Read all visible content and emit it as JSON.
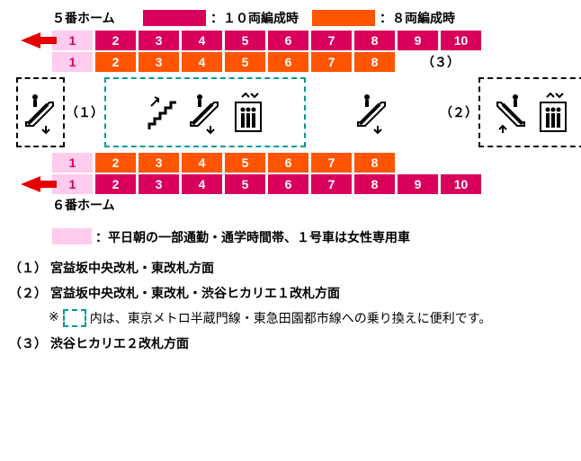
{
  "colors": {
    "magenta": "#d9005b",
    "orange": "#ff5500",
    "pink": "#ffccee",
    "arrow": "#e60000",
    "teal": "#009999"
  },
  "legend_top": {
    "swatch1_color": "#d9005b",
    "label1": "：１０両編成時",
    "swatch2_color": "#ff5500",
    "label2": "：８両編成時"
  },
  "platform5_label": "５番ホーム",
  "platform6_label": "６番ホーム",
  "row_10car": {
    "cars": [
      "1",
      "2",
      "3",
      "4",
      "5",
      "6",
      "7",
      "8",
      "9",
      "10"
    ],
    "colors": [
      "#ffccee",
      "#d9005b",
      "#d9005b",
      "#d9005b",
      "#d9005b",
      "#d9005b",
      "#d9005b",
      "#d9005b",
      "#d9005b",
      "#d9005b"
    ]
  },
  "row_8car": {
    "cars": [
      "1",
      "2",
      "3",
      "4",
      "5",
      "6",
      "7",
      "8"
    ],
    "colors": [
      "#ffccee",
      "#ff5500",
      "#ff5500",
      "#ff5500",
      "#ff5500",
      "#ff5500",
      "#ff5500",
      "#ff5500"
    ]
  },
  "paren_3": "（３）",
  "paren_1": "（１）",
  "paren_2": "（２）",
  "legend_pink": "：平日朝の一部通勤・通学時間帯、１号車は女性専用車",
  "notes": {
    "n1_label": "（１）",
    "n1_text": "宮益坂中央改札・東改札方面",
    "n2_label": "（２）",
    "n2_text": "宮益坂中央改札・東改札・渋谷ヒカリエ１改札方面",
    "n2_sub_prefix": "※",
    "n2_sub_text": "内は、東京メトロ半蔵門線・東急田園都市線への乗り換えに便利です。",
    "n3_label": "（３）",
    "n3_text": "渋谷ヒカリエ２改札方面"
  }
}
